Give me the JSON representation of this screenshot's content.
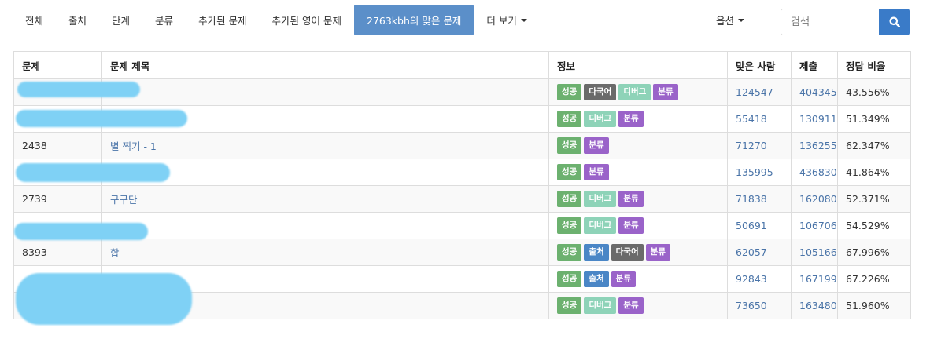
{
  "nav": {
    "tabs": [
      {
        "label": "전체",
        "active": false
      },
      {
        "label": "출처",
        "active": false
      },
      {
        "label": "단계",
        "active": false
      },
      {
        "label": "분류",
        "active": false
      },
      {
        "label": "추가된 문제",
        "active": false
      },
      {
        "label": "추가된 영어 문제",
        "active": false
      },
      {
        "label": "2763kbh의 맞은 문제",
        "active": true
      },
      {
        "label": "더 보기",
        "active": false
      }
    ],
    "options_label": "옵션",
    "search_placeholder": "검색"
  },
  "table": {
    "headers": [
      "문제",
      "문제 제목",
      "정보",
      "맞은 사람",
      "제출",
      "정답 비율"
    ],
    "rows": [
      {
        "id": "",
        "title": "",
        "badges": [
          "성공",
          "다국어",
          "디버그",
          "분류"
        ],
        "solved": "124547",
        "submissions": "404345",
        "ratio": "43.556%"
      },
      {
        "id": "",
        "title": "",
        "badges": [
          "성공",
          "디버그",
          "분류"
        ],
        "solved": "55418",
        "submissions": "130911",
        "ratio": "51.349%"
      },
      {
        "id": "2438",
        "title": "별 찍기 - 1",
        "badges": [
          "성공",
          "분류"
        ],
        "solved": "71270",
        "submissions": "136255",
        "ratio": "62.347%"
      },
      {
        "id": "",
        "title": "",
        "badges": [
          "성공",
          "분류"
        ],
        "solved": "135995",
        "submissions": "436830",
        "ratio": "41.864%"
      },
      {
        "id": "2739",
        "title": "구구단",
        "badges": [
          "성공",
          "디버그",
          "분류"
        ],
        "solved": "71838",
        "submissions": "162080",
        "ratio": "52.371%"
      },
      {
        "id": "",
        "title": "",
        "badges": [
          "성공",
          "디버그",
          "분류"
        ],
        "solved": "50691",
        "submissions": "106706",
        "ratio": "54.529%"
      },
      {
        "id": "8393",
        "title": "합",
        "badges": [
          "성공",
          "출처",
          "다국어",
          "분류"
        ],
        "solved": "62057",
        "submissions": "105166",
        "ratio": "67.996%"
      },
      {
        "id": "",
        "title": "",
        "badges": [
          "성공",
          "출처",
          "분류"
        ],
        "solved": "92843",
        "submissions": "167199",
        "ratio": "67.226%"
      },
      {
        "id": "",
        "title": "",
        "badges": [
          "성공",
          "디버그",
          "분류"
        ],
        "solved": "73650",
        "submissions": "163480",
        "ratio": "51.960%"
      }
    ]
  },
  "badge_colors": {
    "성공": "#6cb16f",
    "다국어": "#6a6a6a",
    "디버그": "#8ed3b8",
    "분류": "#9a63c9",
    "출처": "#4a86c6"
  },
  "icons": {
    "search": "search-icon",
    "caret": "caret-down-icon"
  }
}
